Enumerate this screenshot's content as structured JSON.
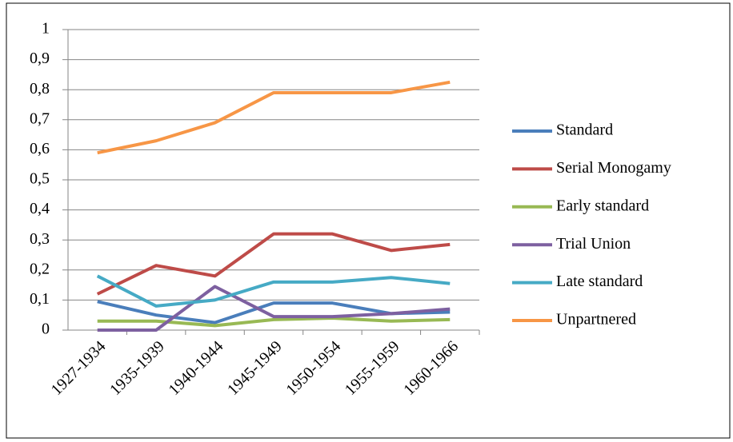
{
  "chart_data": {
    "type": "line",
    "categories": [
      "1927-1934",
      "1935-1939",
      "1940-1944",
      "1945-1949",
      "1950-1954",
      "1955-1959",
      "1960-1966"
    ],
    "series": [
      {
        "name": "Standard",
        "color": "#4a7ebb",
        "values": [
          0.095,
          0.05,
          0.025,
          0.09,
          0.09,
          0.055,
          0.06
        ]
      },
      {
        "name": "Serial Monogamy",
        "color": "#be4b48",
        "values": [
          0.12,
          0.215,
          0.18,
          0.32,
          0.32,
          0.265,
          0.285
        ]
      },
      {
        "name": "Early standard",
        "color": "#98b954",
        "values": [
          0.03,
          0.03,
          0.015,
          0.035,
          0.04,
          0.03,
          0.035
        ]
      },
      {
        "name": "Trial Union",
        "color": "#7d60a0",
        "values": [
          0,
          0,
          0.145,
          0.045,
          0.045,
          0.055,
          0.07
        ]
      },
      {
        "name": "Late standard",
        "color": "#46aac5",
        "values": [
          0.18,
          0.08,
          0.1,
          0.16,
          0.16,
          0.175,
          0.155
        ]
      },
      {
        "name": "Unpartnered",
        "color": "#f79646",
        "values": [
          0.59,
          0.63,
          0.69,
          0.79,
          0.79,
          0.79,
          0.825
        ]
      }
    ],
    "ylim": [
      0,
      1
    ],
    "yticks": [
      0,
      {
        "value": 0.1,
        "label": "0,1"
      },
      {
        "value": 0.2,
        "label": "0,2"
      },
      {
        "value": 0.3,
        "label": "0,3"
      },
      {
        "value": 0.4,
        "label": "0,4"
      },
      {
        "value": 0.5,
        "label": "0,5"
      },
      {
        "value": 0.6,
        "label": "0,6"
      },
      {
        "value": 0.7,
        "label": "0,7"
      },
      {
        "value": 0.8,
        "label": "0,8"
      },
      {
        "value": 0.9,
        "label": "0,9"
      },
      1
    ],
    "grid": true,
    "legend": "right"
  }
}
